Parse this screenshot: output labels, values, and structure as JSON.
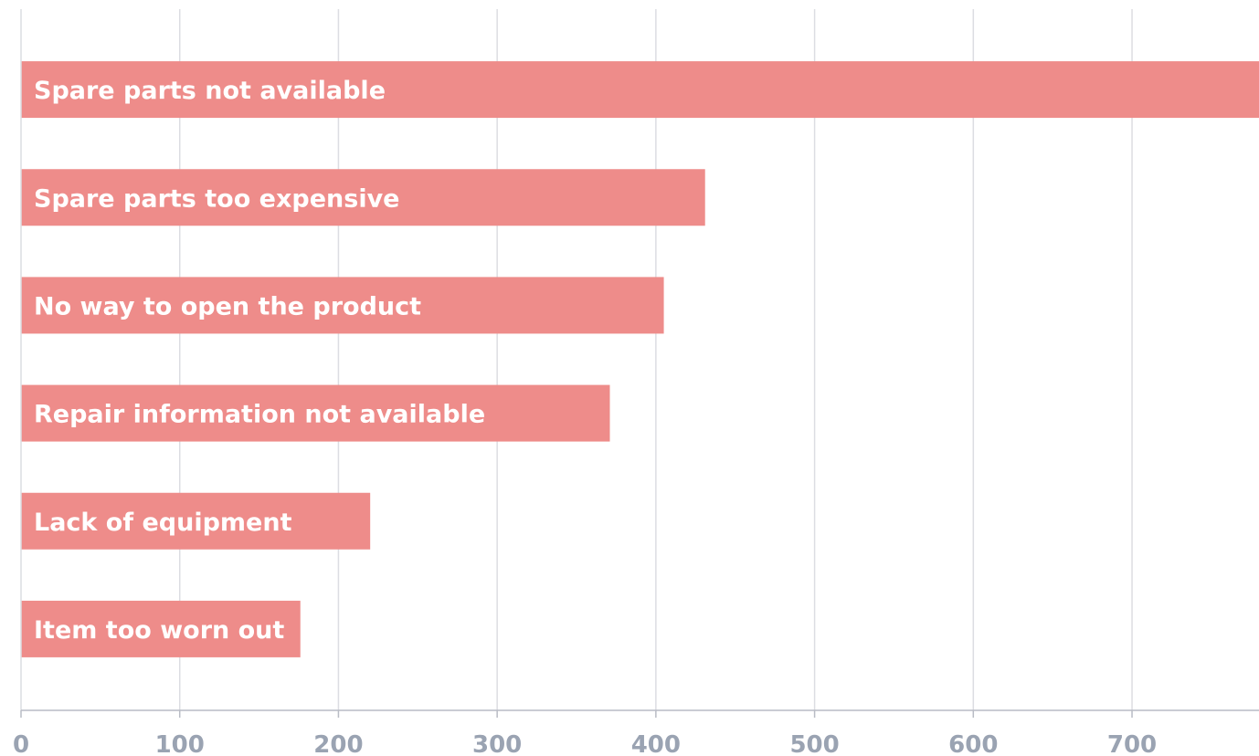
{
  "chart_data": {
    "type": "bar",
    "orientation": "horizontal",
    "categories": [
      "Spare parts not available",
      "Spare parts too expensive",
      "No way to open the product",
      "Repair information not available",
      "Lack of equipment",
      "Item too worn out"
    ],
    "values": [
      790,
      431,
      405,
      371,
      220,
      176
    ],
    "xticks": [
      "0",
      "100",
      "200",
      "300",
      "400",
      "500",
      "600",
      "700"
    ],
    "xlim": [
      0,
      780
    ],
    "title": "",
    "xlabel": "",
    "ylabel": "",
    "grid": "vertical",
    "legend": "none",
    "colors": {
      "bar": "#ee8c8a",
      "grid": "#dcdde2",
      "axis": "#b9bcc5",
      "tick_label": "#9aa3b2",
      "bar_label": "#ffffff"
    }
  }
}
